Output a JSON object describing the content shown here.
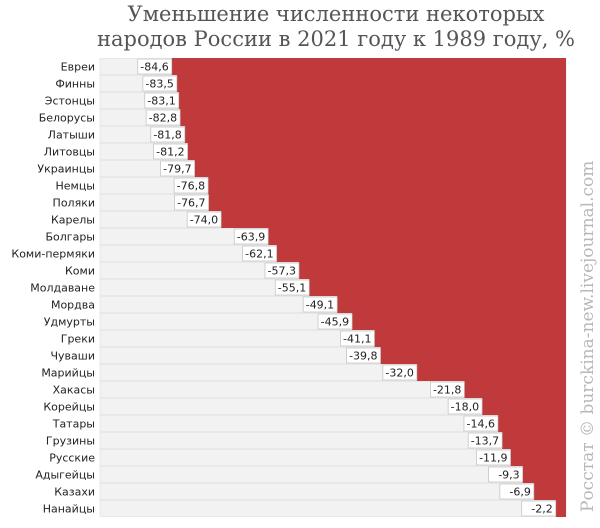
{
  "chart_data": {
    "type": "bar",
    "title": "Уменьшение численности некоторых\nнародов России в 2021 году к 1989 году, %",
    "categories": [
      "Евреи",
      "Финны",
      "Эстонцы",
      "Белорусы",
      "Латыши",
      "Литовцы",
      "Украинцы",
      "Немцы",
      "Поляки",
      "Карелы",
      "Болгары",
      "Коми-пермяки",
      "Коми",
      "Молдаване",
      "Мордва",
      "Удмурты",
      "Греки",
      "Чуваши",
      "Марийцы",
      "Хакасы",
      "Корейцы",
      "Татары",
      "Грузины",
      "Русские",
      "Адыгейцы",
      "Казахи",
      "Нанайцы"
    ],
    "values": [
      -84.6,
      -83.5,
      -83.1,
      -82.8,
      -81.8,
      -81.2,
      -79.7,
      -76.8,
      -76.7,
      -74.0,
      -63.9,
      -62.1,
      -57.3,
      -55.1,
      -49.1,
      -45.9,
      -41.1,
      -39.8,
      -32.0,
      -21.8,
      -18.0,
      -14.6,
      -13.7,
      -11.9,
      -9.3,
      -6.9,
      -2.2
    ],
    "value_labels": [
      "-84,6",
      "-83,5",
      "-83,1",
      "-82,8",
      "-81,8",
      "-81,2",
      "-79,7",
      "-76,8",
      "-76,7",
      "-74,0",
      "-63,9",
      "-62,1",
      "-57,3",
      "-55,1",
      "-49,1",
      "-45,9",
      "-41,1",
      "-39,8",
      "-32,0",
      "-21,8",
      "-18,0",
      "-14,6",
      "-13,7",
      "-11,9",
      "-9,3",
      "-6,9",
      "-2,2"
    ],
    "xlim": [
      -100,
      0
    ],
    "orientation": "horizontal",
    "colors": {
      "bar": "#c0393b",
      "background": "#f2f2f2",
      "value_box": "#ffffff"
    }
  },
  "watermark": "Росстат © burckina-new.livejournal.com"
}
